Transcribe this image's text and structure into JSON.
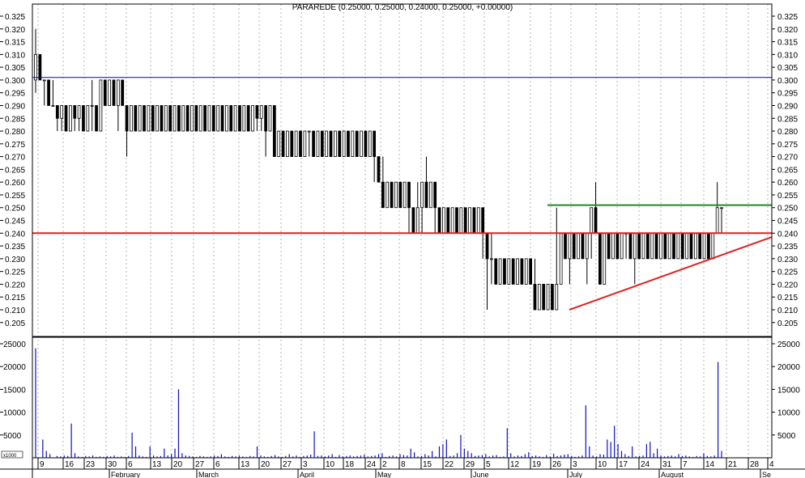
{
  "chart_data": {
    "type": "candlestick",
    "title": "PARAREDE (0.25000, 0.25000, 0.24000, 0.25000, +0.00000)",
    "price_axis": {
      "ylim": [
        0.2,
        0.325
      ],
      "ticks": [
        "0.325",
        "0.320",
        "0.315",
        "0.310",
        "0.305",
        "0.300",
        "0.295",
        "0.290",
        "0.285",
        "0.280",
        "0.275",
        "0.270",
        "0.265",
        "0.260",
        "0.255",
        "0.250",
        "0.245",
        "0.240",
        "0.235",
        "0.230",
        "0.225",
        "0.220",
        "0.215",
        "0.210",
        "0.205"
      ]
    },
    "volume_axis": {
      "ylim": [
        0,
        26000
      ],
      "ticks": [
        "25000",
        "20000",
        "15000",
        "10000",
        "5000"
      ],
      "unit_label": "x1000"
    },
    "x_day_labels": [
      "9",
      "16",
      "23",
      "30",
      "6",
      "13",
      "20",
      "27",
      "6",
      "13",
      "20",
      "27",
      "3",
      "10",
      "18",
      "24",
      "2",
      "8",
      "15",
      "22",
      "29",
      "5",
      "12",
      "19",
      "26",
      "3",
      "10",
      "17",
      "24",
      "31",
      "7",
      "14",
      "21",
      "28",
      "4"
    ],
    "x_month_labels": [
      "February",
      "March",
      "April",
      "May",
      "June",
      "July",
      "August",
      "Se"
    ],
    "grid": true,
    "ohlc": [
      {
        "o": 0.3,
        "h": 0.32,
        "l": 0.295,
        "c": 0.31
      },
      {
        "o": 0.31,
        "h": 0.31,
        "l": 0.3,
        "c": 0.3
      },
      {
        "o": 0.3,
        "h": 0.3,
        "l": 0.29,
        "c": 0.3
      },
      {
        "o": 0.3,
        "h": 0.3,
        "l": 0.29,
        "c": 0.29
      },
      {
        "o": 0.29,
        "h": 0.3,
        "l": 0.29,
        "c": 0.29
      },
      {
        "o": 0.29,
        "h": 0.29,
        "l": 0.28,
        "c": 0.285
      },
      {
        "o": 0.285,
        "h": 0.29,
        "l": 0.28,
        "c": 0.29
      },
      {
        "o": 0.29,
        "h": 0.29,
        "l": 0.28,
        "c": 0.28
      },
      {
        "o": 0.28,
        "h": 0.29,
        "l": 0.28,
        "c": 0.29
      },
      {
        "o": 0.29,
        "h": 0.29,
        "l": 0.28,
        "c": 0.285
      },
      {
        "o": 0.285,
        "h": 0.29,
        "l": 0.28,
        "c": 0.29
      },
      {
        "o": 0.29,
        "h": 0.29,
        "l": 0.28,
        "c": 0.28
      },
      {
        "o": 0.28,
        "h": 0.29,
        "l": 0.28,
        "c": 0.29
      },
      {
        "o": 0.29,
        "h": 0.3,
        "l": 0.28,
        "c": 0.29
      },
      {
        "o": 0.29,
        "h": 0.29,
        "l": 0.28,
        "c": 0.28
      },
      {
        "o": 0.28,
        "h": 0.3,
        "l": 0.28,
        "c": 0.3
      },
      {
        "o": 0.3,
        "h": 0.3,
        "l": 0.29,
        "c": 0.29
      },
      {
        "o": 0.29,
        "h": 0.3,
        "l": 0.29,
        "c": 0.3
      },
      {
        "o": 0.3,
        "h": 0.3,
        "l": 0.29,
        "c": 0.29
      },
      {
        "o": 0.29,
        "h": 0.3,
        "l": 0.28,
        "c": 0.3
      },
      {
        "o": 0.3,
        "h": 0.3,
        "l": 0.29,
        "c": 0.29
      },
      {
        "o": 0.29,
        "h": 0.29,
        "l": 0.27,
        "c": 0.28
      },
      {
        "o": 0.28,
        "h": 0.29,
        "l": 0.28,
        "c": 0.29
      },
      {
        "o": 0.29,
        "h": 0.29,
        "l": 0.28,
        "c": 0.28
      },
      {
        "o": 0.28,
        "h": 0.29,
        "l": 0.28,
        "c": 0.29
      },
      {
        "o": 0.29,
        "h": 0.29,
        "l": 0.28,
        "c": 0.28
      },
      {
        "o": 0.28,
        "h": 0.29,
        "l": 0.28,
        "c": 0.29
      },
      {
        "o": 0.29,
        "h": 0.29,
        "l": 0.28,
        "c": 0.28
      },
      {
        "o": 0.28,
        "h": 0.29,
        "l": 0.28,
        "c": 0.29
      },
      {
        "o": 0.29,
        "h": 0.29,
        "l": 0.28,
        "c": 0.28
      },
      {
        "o": 0.28,
        "h": 0.29,
        "l": 0.28,
        "c": 0.29
      },
      {
        "o": 0.29,
        "h": 0.29,
        "l": 0.28,
        "c": 0.28
      },
      {
        "o": 0.28,
        "h": 0.29,
        "l": 0.28,
        "c": 0.29
      },
      {
        "o": 0.29,
        "h": 0.29,
        "l": 0.28,
        "c": 0.28
      },
      {
        "o": 0.28,
        "h": 0.29,
        "l": 0.28,
        "c": 0.29
      },
      {
        "o": 0.29,
        "h": 0.29,
        "l": 0.28,
        "c": 0.28
      },
      {
        "o": 0.28,
        "h": 0.29,
        "l": 0.28,
        "c": 0.29
      },
      {
        "o": 0.29,
        "h": 0.29,
        "l": 0.28,
        "c": 0.28
      },
      {
        "o": 0.28,
        "h": 0.29,
        "l": 0.28,
        "c": 0.29
      },
      {
        "o": 0.29,
        "h": 0.29,
        "l": 0.28,
        "c": 0.28
      },
      {
        "o": 0.28,
        "h": 0.29,
        "l": 0.28,
        "c": 0.29
      },
      {
        "o": 0.29,
        "h": 0.29,
        "l": 0.28,
        "c": 0.28
      },
      {
        "o": 0.28,
        "h": 0.29,
        "l": 0.28,
        "c": 0.29
      },
      {
        "o": 0.29,
        "h": 0.29,
        "l": 0.28,
        "c": 0.28
      },
      {
        "o": 0.28,
        "h": 0.29,
        "l": 0.28,
        "c": 0.29
      },
      {
        "o": 0.29,
        "h": 0.29,
        "l": 0.28,
        "c": 0.28
      },
      {
        "o": 0.28,
        "h": 0.29,
        "l": 0.28,
        "c": 0.29
      },
      {
        "o": 0.29,
        "h": 0.29,
        "l": 0.28,
        "c": 0.28
      },
      {
        "o": 0.28,
        "h": 0.29,
        "l": 0.28,
        "c": 0.29
      },
      {
        "o": 0.29,
        "h": 0.29,
        "l": 0.28,
        "c": 0.28
      },
      {
        "o": 0.28,
        "h": 0.29,
        "l": 0.28,
        "c": 0.29
      },
      {
        "o": 0.29,
        "h": 0.29,
        "l": 0.28,
        "c": 0.285
      },
      {
        "o": 0.285,
        "h": 0.29,
        "l": 0.28,
        "c": 0.29
      },
      {
        "o": 0.29,
        "h": 0.29,
        "l": 0.27,
        "c": 0.28
      },
      {
        "o": 0.28,
        "h": 0.29,
        "l": 0.28,
        "c": 0.29
      },
      {
        "o": 0.29,
        "h": 0.29,
        "l": 0.27,
        "c": 0.27
      },
      {
        "o": 0.27,
        "h": 0.28,
        "l": 0.27,
        "c": 0.28
      },
      {
        "o": 0.28,
        "h": 0.28,
        "l": 0.27,
        "c": 0.27
      },
      {
        "o": 0.27,
        "h": 0.28,
        "l": 0.27,
        "c": 0.28
      },
      {
        "o": 0.28,
        "h": 0.28,
        "l": 0.27,
        "c": 0.27
      },
      {
        "o": 0.27,
        "h": 0.28,
        "l": 0.27,
        "c": 0.28
      },
      {
        "o": 0.28,
        "h": 0.28,
        "l": 0.27,
        "c": 0.27
      },
      {
        "o": 0.27,
        "h": 0.28,
        "l": 0.27,
        "c": 0.28
      },
      {
        "o": 0.28,
        "h": 0.28,
        "l": 0.27,
        "c": 0.28
      },
      {
        "o": 0.28,
        "h": 0.28,
        "l": 0.27,
        "c": 0.27
      },
      {
        "o": 0.27,
        "h": 0.28,
        "l": 0.27,
        "c": 0.28
      },
      {
        "o": 0.28,
        "h": 0.28,
        "l": 0.27,
        "c": 0.27
      },
      {
        "o": 0.27,
        "h": 0.28,
        "l": 0.27,
        "c": 0.28
      },
      {
        "o": 0.28,
        "h": 0.28,
        "l": 0.27,
        "c": 0.27
      },
      {
        "o": 0.27,
        "h": 0.28,
        "l": 0.27,
        "c": 0.28
      },
      {
        "o": 0.28,
        "h": 0.28,
        "l": 0.27,
        "c": 0.27
      },
      {
        "o": 0.27,
        "h": 0.28,
        "l": 0.27,
        "c": 0.28
      },
      {
        "o": 0.28,
        "h": 0.28,
        "l": 0.27,
        "c": 0.27
      },
      {
        "o": 0.27,
        "h": 0.28,
        "l": 0.27,
        "c": 0.28
      },
      {
        "o": 0.28,
        "h": 0.28,
        "l": 0.27,
        "c": 0.27
      },
      {
        "o": 0.27,
        "h": 0.28,
        "l": 0.27,
        "c": 0.28
      },
      {
        "o": 0.28,
        "h": 0.28,
        "l": 0.27,
        "c": 0.27
      },
      {
        "o": 0.27,
        "h": 0.28,
        "l": 0.27,
        "c": 0.28
      },
      {
        "o": 0.28,
        "h": 0.28,
        "l": 0.26,
        "c": 0.27
      },
      {
        "o": 0.27,
        "h": 0.27,
        "l": 0.26,
        "c": 0.26
      },
      {
        "o": 0.26,
        "h": 0.27,
        "l": 0.25,
        "c": 0.25
      },
      {
        "o": 0.25,
        "h": 0.26,
        "l": 0.25,
        "c": 0.26
      },
      {
        "o": 0.26,
        "h": 0.26,
        "l": 0.25,
        "c": 0.25
      },
      {
        "o": 0.25,
        "h": 0.26,
        "l": 0.25,
        "c": 0.26
      },
      {
        "o": 0.26,
        "h": 0.26,
        "l": 0.25,
        "c": 0.25
      },
      {
        "o": 0.25,
        "h": 0.26,
        "l": 0.25,
        "c": 0.26
      },
      {
        "o": 0.26,
        "h": 0.26,
        "l": 0.24,
        "c": 0.25
      },
      {
        "o": 0.25,
        "h": 0.25,
        "l": 0.24,
        "c": 0.24
      },
      {
        "o": 0.24,
        "h": 0.26,
        "l": 0.24,
        "c": 0.25
      },
      {
        "o": 0.25,
        "h": 0.26,
        "l": 0.24,
        "c": 0.26
      },
      {
        "o": 0.26,
        "h": 0.27,
        "l": 0.25,
        "c": 0.25
      },
      {
        "o": 0.25,
        "h": 0.26,
        "l": 0.25,
        "c": 0.26
      },
      {
        "o": 0.26,
        "h": 0.26,
        "l": 0.24,
        "c": 0.25
      },
      {
        "o": 0.25,
        "h": 0.25,
        "l": 0.24,
        "c": 0.24
      },
      {
        "o": 0.24,
        "h": 0.25,
        "l": 0.24,
        "c": 0.25
      },
      {
        "o": 0.25,
        "h": 0.25,
        "l": 0.24,
        "c": 0.24
      },
      {
        "o": 0.24,
        "h": 0.25,
        "l": 0.24,
        "c": 0.25
      },
      {
        "o": 0.25,
        "h": 0.25,
        "l": 0.24,
        "c": 0.24
      },
      {
        "o": 0.24,
        "h": 0.25,
        "l": 0.24,
        "c": 0.25
      },
      {
        "o": 0.25,
        "h": 0.25,
        "l": 0.24,
        "c": 0.24
      },
      {
        "o": 0.24,
        "h": 0.25,
        "l": 0.24,
        "c": 0.25
      },
      {
        "o": 0.25,
        "h": 0.25,
        "l": 0.24,
        "c": 0.24
      },
      {
        "o": 0.24,
        "h": 0.25,
        "l": 0.24,
        "c": 0.25
      },
      {
        "o": 0.25,
        "h": 0.25,
        "l": 0.23,
        "c": 0.24
      },
      {
        "o": 0.24,
        "h": 0.24,
        "l": 0.21,
        "c": 0.23
      },
      {
        "o": 0.23,
        "h": 0.24,
        "l": 0.22,
        "c": 0.23
      },
      {
        "o": 0.23,
        "h": 0.23,
        "l": 0.22,
        "c": 0.22
      },
      {
        "o": 0.22,
        "h": 0.23,
        "l": 0.22,
        "c": 0.23
      },
      {
        "o": 0.23,
        "h": 0.23,
        "l": 0.22,
        "c": 0.22
      },
      {
        "o": 0.22,
        "h": 0.23,
        "l": 0.22,
        "c": 0.23
      },
      {
        "o": 0.23,
        "h": 0.23,
        "l": 0.22,
        "c": 0.22
      },
      {
        "o": 0.22,
        "h": 0.23,
        "l": 0.22,
        "c": 0.23
      },
      {
        "o": 0.23,
        "h": 0.23,
        "l": 0.22,
        "c": 0.22
      },
      {
        "o": 0.22,
        "h": 0.23,
        "l": 0.22,
        "c": 0.23
      },
      {
        "o": 0.23,
        "h": 0.23,
        "l": 0.22,
        "c": 0.22
      },
      {
        "o": 0.22,
        "h": 0.23,
        "l": 0.21,
        "c": 0.21
      },
      {
        "o": 0.21,
        "h": 0.22,
        "l": 0.21,
        "c": 0.22
      },
      {
        "o": 0.22,
        "h": 0.22,
        "l": 0.21,
        "c": 0.21
      },
      {
        "o": 0.21,
        "h": 0.22,
        "l": 0.21,
        "c": 0.22
      },
      {
        "o": 0.22,
        "h": 0.22,
        "l": 0.21,
        "c": 0.21
      },
      {
        "o": 0.21,
        "h": 0.25,
        "l": 0.21,
        "c": 0.22
      },
      {
        "o": 0.22,
        "h": 0.24,
        "l": 0.22,
        "c": 0.24
      },
      {
        "o": 0.24,
        "h": 0.24,
        "l": 0.23,
        "c": 0.23
      },
      {
        "o": 0.23,
        "h": 0.24,
        "l": 0.22,
        "c": 0.24
      },
      {
        "o": 0.24,
        "h": 0.24,
        "l": 0.23,
        "c": 0.23
      },
      {
        "o": 0.23,
        "h": 0.24,
        "l": 0.23,
        "c": 0.24
      },
      {
        "o": 0.24,
        "h": 0.24,
        "l": 0.23,
        "c": 0.23
      },
      {
        "o": 0.23,
        "h": 0.24,
        "l": 0.22,
        "c": 0.24
      },
      {
        "o": 0.24,
        "h": 0.25,
        "l": 0.23,
        "c": 0.25
      },
      {
        "o": 0.25,
        "h": 0.26,
        "l": 0.24,
        "c": 0.24
      },
      {
        "o": 0.24,
        "h": 0.24,
        "l": 0.22,
        "c": 0.22
      },
      {
        "o": 0.22,
        "h": 0.24,
        "l": 0.22,
        "c": 0.24
      },
      {
        "o": 0.24,
        "h": 0.24,
        "l": 0.23,
        "c": 0.23
      },
      {
        "o": 0.23,
        "h": 0.24,
        "l": 0.23,
        "c": 0.24
      },
      {
        "o": 0.24,
        "h": 0.24,
        "l": 0.23,
        "c": 0.23
      },
      {
        "o": 0.23,
        "h": 0.24,
        "l": 0.23,
        "c": 0.24
      },
      {
        "o": 0.24,
        "h": 0.24,
        "l": 0.23,
        "c": 0.24
      },
      {
        "o": 0.24,
        "h": 0.24,
        "l": 0.23,
        "c": 0.23
      },
      {
        "o": 0.23,
        "h": 0.24,
        "l": 0.22,
        "c": 0.24
      },
      {
        "o": 0.24,
        "h": 0.24,
        "l": 0.23,
        "c": 0.23
      },
      {
        "o": 0.23,
        "h": 0.24,
        "l": 0.23,
        "c": 0.24
      },
      {
        "o": 0.24,
        "h": 0.24,
        "l": 0.23,
        "c": 0.23
      },
      {
        "o": 0.23,
        "h": 0.24,
        "l": 0.23,
        "c": 0.24
      },
      {
        "o": 0.24,
        "h": 0.24,
        "l": 0.23,
        "c": 0.23
      },
      {
        "o": 0.23,
        "h": 0.24,
        "l": 0.23,
        "c": 0.24
      },
      {
        "o": 0.24,
        "h": 0.24,
        "l": 0.23,
        "c": 0.23
      },
      {
        "o": 0.23,
        "h": 0.24,
        "l": 0.23,
        "c": 0.24
      },
      {
        "o": 0.24,
        "h": 0.24,
        "l": 0.23,
        "c": 0.23
      },
      {
        "o": 0.23,
        "h": 0.24,
        "l": 0.23,
        "c": 0.24
      },
      {
        "o": 0.24,
        "h": 0.24,
        "l": 0.23,
        "c": 0.23
      },
      {
        "o": 0.23,
        "h": 0.24,
        "l": 0.23,
        "c": 0.24
      },
      {
        "o": 0.24,
        "h": 0.24,
        "l": 0.23,
        "c": 0.23
      },
      {
        "o": 0.23,
        "h": 0.24,
        "l": 0.23,
        "c": 0.24
      },
      {
        "o": 0.24,
        "h": 0.24,
        "l": 0.23,
        "c": 0.23
      },
      {
        "o": 0.23,
        "h": 0.24,
        "l": 0.23,
        "c": 0.24
      },
      {
        "o": 0.24,
        "h": 0.24,
        "l": 0.23,
        "c": 0.23
      },
      {
        "o": 0.23,
        "h": 0.24,
        "l": 0.23,
        "c": 0.24
      },
      {
        "o": 0.24,
        "h": 0.26,
        "l": 0.24,
        "c": 0.25
      },
      {
        "o": 0.25,
        "h": 0.25,
        "l": 0.24,
        "c": 0.25
      }
    ],
    "volume": [
      24000,
      0,
      4000,
      1500,
      800,
      0,
      400,
      300,
      500,
      400,
      7500,
      1000,
      300,
      200,
      400,
      300,
      500,
      200,
      300,
      200,
      400,
      300,
      500,
      200,
      300,
      200,
      400,
      5500,
      2500,
      500,
      300,
      200,
      2500,
      500,
      300,
      400,
      2000,
      500,
      800,
      2000,
      15000,
      1000,
      500,
      400,
      300,
      200,
      400,
      300,
      200,
      300,
      500,
      400,
      800,
      300,
      200,
      400,
      300,
      500,
      300,
      200,
      400,
      300,
      2500,
      500,
      300,
      200,
      400,
      600,
      300,
      200,
      400,
      800,
      300,
      500,
      200,
      400,
      500,
      700,
      5800,
      400,
      500,
      300,
      500,
      800,
      200,
      600,
      300,
      400,
      500,
      300,
      400,
      500,
      700,
      300,
      400,
      500,
      800,
      1000,
      200,
      400,
      500,
      300,
      800,
      600,
      500,
      2000,
      1200,
      300,
      400,
      800,
      500,
      1500,
      300,
      2500,
      3000,
      4000,
      400,
      500,
      1000,
      5000,
      2000,
      1500,
      1000,
      400,
      500,
      600,
      800,
      300,
      500,
      600,
      200,
      300,
      6500,
      1000,
      300,
      500,
      400,
      800,
      1200,
      400,
      500,
      300,
      200,
      600,
      300,
      900,
      400,
      500,
      700,
      800,
      400,
      200,
      300,
      500,
      11500,
      2500,
      500,
      300,
      800,
      700,
      4000,
      3500,
      7000,
      3000,
      1500,
      800,
      400,
      2500,
      300,
      400,
      500,
      3000,
      3500,
      1000,
      2000,
      500,
      300,
      400,
      500,
      300,
      800,
      400,
      500,
      300,
      200,
      400,
      300,
      1000,
      400,
      300,
      500,
      21000,
      1500
    ],
    "horizontal_lines": [
      {
        "value": 0.301,
        "color": "#0000cc"
      },
      {
        "value": 0.24,
        "color": "#e02020"
      }
    ],
    "resistance_line": {
      "value": 0.251,
      "color": "#228822",
      "from_label": "26",
      "to_label": "21"
    },
    "trend_line": {
      "from": {
        "label": "3",
        "value": 0.21
      },
      "to": {
        "label": "4",
        "value": 0.2385
      },
      "color": "#e02020"
    }
  }
}
